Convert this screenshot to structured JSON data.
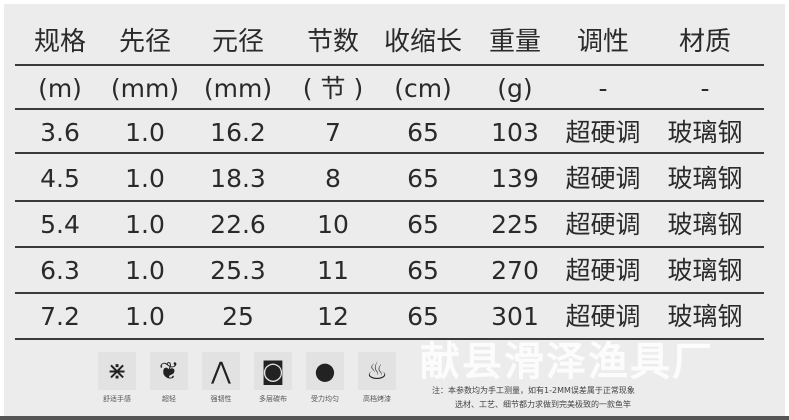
{
  "table": {
    "headers": [
      "规格",
      "先径",
      "元径",
      "节数",
      "收缩长",
      "重量",
      "调性",
      "材质"
    ],
    "units": [
      "(m)",
      "(mm)",
      "(mm)",
      "( 节 )",
      "(cm)",
      "(g)",
      "-",
      "-"
    ],
    "rows": [
      [
        "3.6",
        "1.0",
        "16.2",
        "7",
        "65",
        "103",
        "超硬调",
        "玻璃钢"
      ],
      [
        "4.5",
        "1.0",
        "18.3",
        "8",
        "65",
        "139",
        "超硬调",
        "玻璃钢"
      ],
      [
        "5.4",
        "1.0",
        "22.6",
        "10",
        "65",
        "225",
        "超硬调",
        "玻璃钢"
      ],
      [
        "6.3",
        "1.0",
        "25.3",
        "11",
        "65",
        "270",
        "超硬调",
        "玻璃钢"
      ],
      [
        "7.2",
        "1.0",
        "25",
        "12",
        "65",
        "301",
        "超硬调",
        "玻璃钢"
      ]
    ]
  },
  "features": [
    {
      "label": "舒适手感",
      "icon": "grip-icon",
      "glyph": "⋇"
    },
    {
      "label": "超轻",
      "icon": "feather-icon",
      "glyph": "❦"
    },
    {
      "label": "强韧性",
      "icon": "bend-icon",
      "glyph": "⋀"
    },
    {
      "label": "多层碳布",
      "icon": "carbon-roll-icon",
      "glyph": "◙"
    },
    {
      "label": "受力均匀",
      "icon": "balance-icon",
      "glyph": "●"
    },
    {
      "label": "高档烤漆",
      "icon": "flame-icon",
      "glyph": "♨"
    }
  ],
  "note": {
    "line1": "注：本参数均为手工测量，如有1-2MM误差属于正常现象",
    "line2": "选材、工艺、细节都力求做到完美极致的一款鱼竿"
  },
  "watermark": "献县滑泽渔具厂"
}
